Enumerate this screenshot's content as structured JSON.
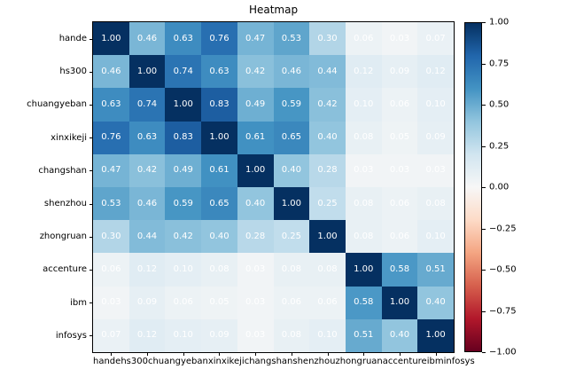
{
  "title": "Heatmap",
  "chart_data": {
    "type": "heatmap",
    "title": "Heatmap",
    "categories": [
      "hande",
      "hs300",
      "chuangyeban",
      "xinxikeji",
      "changshan",
      "shenzhou",
      "zhongruan",
      "accenture",
      "ibm",
      "infosys"
    ],
    "matrix": [
      [
        1.0,
        0.46,
        0.63,
        0.76,
        0.47,
        0.53,
        0.3,
        0.06,
        0.03,
        0.07
      ],
      [
        0.46,
        1.0,
        0.74,
        0.63,
        0.42,
        0.46,
        0.44,
        0.12,
        0.09,
        0.12
      ],
      [
        0.63,
        0.74,
        1.0,
        0.83,
        0.49,
        0.59,
        0.42,
        0.1,
        0.06,
        0.1
      ],
      [
        0.76,
        0.63,
        0.83,
        1.0,
        0.61,
        0.65,
        0.4,
        0.08,
        0.05,
        0.09
      ],
      [
        0.47,
        0.42,
        0.49,
        0.61,
        1.0,
        0.4,
        0.28,
        0.03,
        0.03,
        0.03
      ],
      [
        0.53,
        0.46,
        0.59,
        0.65,
        0.4,
        1.0,
        0.25,
        0.08,
        0.06,
        0.08
      ],
      [
        0.3,
        0.44,
        0.42,
        0.4,
        0.28,
        0.25,
        1.0,
        0.08,
        0.06,
        0.1
      ],
      [
        0.06,
        0.12,
        0.1,
        0.08,
        0.03,
        0.08,
        0.08,
        1.0,
        0.58,
        0.51
      ],
      [
        0.03,
        0.09,
        0.06,
        0.05,
        0.03,
        0.06,
        0.06,
        0.58,
        1.0,
        0.4
      ],
      [
        0.07,
        0.12,
        0.1,
        0.09,
        0.03,
        0.08,
        0.1,
        0.51,
        0.4,
        1.0
      ]
    ],
    "vmin": -1.0,
    "vmax": 1.0,
    "colormap": "RdBu",
    "cell_text_color": "#ffffff",
    "colorbar_ticks": [
      1.0,
      0.75,
      0.5,
      0.25,
      0.0,
      -0.25,
      -0.5,
      -0.75,
      -1.0
    ],
    "colorbar_tick_labels": [
      "1.00",
      "0.75",
      "0.50",
      "0.25",
      "0.00",
      "−0.25",
      "−0.50",
      "−0.75",
      "−1.00"
    ],
    "legend_position": "right",
    "grid": false
  }
}
